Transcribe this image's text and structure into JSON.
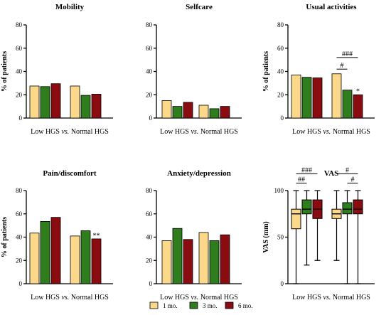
{
  "colors": {
    "1mo": "#fbd88a",
    "3mo": "#2f7d1c",
    "6mo": "#8b0c10",
    "stroke": "#000000"
  },
  "legend": [
    {
      "key": "1mo",
      "label": "1 mo."
    },
    {
      "key": "3mo",
      "label": "3 mo."
    },
    {
      "key": "6mo",
      "label": "6 mo."
    }
  ],
  "chart_data": [
    {
      "type": "bar",
      "title": "Mobility",
      "ylabel": "% of patients",
      "xlabel": {
        "left": "Low HGS ",
        "vs": "vs.",
        "right": " Normal HGS"
      },
      "ylim": [
        0,
        80
      ],
      "yticks": [
        0,
        20,
        40,
        60,
        80
      ],
      "categories": [
        "Low HGS",
        "Normal HGS"
      ],
      "series": [
        {
          "name": "1 mo.",
          "key": "1mo",
          "values": [
            27.5,
            27.5
          ]
        },
        {
          "name": "3 mo.",
          "key": "3mo",
          "values": [
            27,
            19.5
          ]
        },
        {
          "name": "6 mo.",
          "key": "6mo",
          "values": [
            29.5,
            20.5
          ]
        }
      ],
      "annotations": []
    },
    {
      "type": "bar",
      "title": "Selfcare",
      "ylabel": "",
      "xlabel": {
        "left": "Low HGS ",
        "vs": "vs.",
        "right": " Normal HGS"
      },
      "ylim": [
        0,
        80
      ],
      "yticks": [
        0,
        20,
        40,
        60,
        80
      ],
      "categories": [
        "Low HGS",
        "Normal HGS"
      ],
      "series": [
        {
          "name": "1 mo.",
          "key": "1mo",
          "values": [
            15,
            11
          ]
        },
        {
          "name": "3 mo.",
          "key": "3mo",
          "values": [
            10,
            8
          ]
        },
        {
          "name": "6 mo.",
          "key": "6mo",
          "values": [
            13.5,
            10
          ]
        }
      ],
      "annotations": []
    },
    {
      "type": "bar",
      "title": "Usual activities",
      "ylabel": "% of patients",
      "xlabel": {
        "left": "Low HGS ",
        "vs": "vs.",
        "right": " Normal HGS"
      },
      "ylim": [
        0,
        80
      ],
      "yticks": [
        0,
        20,
        40,
        60,
        80
      ],
      "categories": [
        "Low HGS",
        "Normal HGS"
      ],
      "series": [
        {
          "name": "1 mo.",
          "key": "1mo",
          "values": [
            37,
            38
          ]
        },
        {
          "name": "3 mo.",
          "key": "3mo",
          "values": [
            35,
            24
          ]
        },
        {
          "name": "6 mo.",
          "key": "6mo",
          "values": [
            34.5,
            20
          ]
        }
      ],
      "annotations": [
        {
          "text": "###",
          "group": 1,
          "from": 0,
          "to": 2,
          "y": 52
        },
        {
          "text": "#",
          "group": 1,
          "from": 0,
          "to": 1,
          "y": 42
        },
        {
          "text": "*",
          "group": 1,
          "bar": 2,
          "y": 21
        }
      ]
    },
    {
      "type": "bar",
      "title": "Pain/discomfort",
      "ylabel": "% of patients",
      "xlabel": {
        "left": "Low HGS ",
        "vs": "vs.",
        "right": " Normal HGS"
      },
      "ylim": [
        0,
        80
      ],
      "yticks": [
        0,
        20,
        40,
        60,
        80
      ],
      "categories": [
        "Low HGS",
        "Normal HGS"
      ],
      "series": [
        {
          "name": "1 mo.",
          "key": "1mo",
          "values": [
            43.5,
            41
          ]
        },
        {
          "name": "3 mo.",
          "key": "3mo",
          "values": [
            53.5,
            45.5
          ]
        },
        {
          "name": "6 mo.",
          "key": "6mo",
          "values": [
            57,
            38.5
          ]
        }
      ],
      "annotations": [
        {
          "text": "**",
          "group": 1,
          "bar": 2,
          "y": 39.5
        }
      ]
    },
    {
      "type": "bar",
      "title": "Anxiety/depression",
      "ylabel": "",
      "xlabel": {
        "left": "Low HGS ",
        "vs": "vs.",
        "right": " Normal HGS"
      },
      "ylim": [
        0,
        80
      ],
      "yticks": [
        0,
        20,
        40,
        60,
        80
      ],
      "categories": [
        "Low HGS",
        "Normal HGS"
      ],
      "series": [
        {
          "name": "1 mo.",
          "key": "1mo",
          "values": [
            37,
            44
          ]
        },
        {
          "name": "3 mo.",
          "key": "3mo",
          "values": [
            47.5,
            37
          ]
        },
        {
          "name": "6 mo.",
          "key": "6mo",
          "values": [
            38,
            42
          ]
        }
      ],
      "annotations": []
    },
    {
      "type": "box",
      "title": "VAS",
      "ylabel": "VAS (mm)",
      "xlabel": {
        "left": "Low HGS ",
        "vs": "vs.",
        "right": " Normal HGS"
      },
      "ylim": [
        0,
        100
      ],
      "yticks": [
        0,
        50,
        100
      ],
      "categories": [
        "Low HGS",
        "Normal HGS"
      ],
      "series": [
        {
          "name": "1 mo.",
          "key": "1mo",
          "boxes": [
            {
              "min": 0,
              "q1": 59,
              "median": 75,
              "q3": 80,
              "max": 100
            },
            {
              "min": 25,
              "q1": 70,
              "median": 75,
              "q3": 80,
              "max": 100
            }
          ]
        },
        {
          "name": "3 mo.",
          "key": "3mo",
          "boxes": [
            {
              "min": 20,
              "q1": 75,
              "median": 80,
              "q3": 90,
              "max": 100
            },
            {
              "min": 0,
              "q1": 75,
              "median": 80,
              "q3": 87,
              "max": 100
            }
          ]
        },
        {
          "name": "6 mo.",
          "key": "6mo",
          "boxes": [
            {
              "min": 25,
              "q1": 70,
              "median": 80,
              "q3": 90,
              "max": 100
            },
            {
              "min": 0,
              "q1": 75,
              "median": 80,
              "q3": 90,
              "max": 100
            }
          ]
        }
      ],
      "annotations": [
        {
          "text": "###",
          "group": 0,
          "from": 0,
          "to": 2,
          "y": 118
        },
        {
          "text": "##",
          "group": 0,
          "from": 0,
          "to": 1,
          "y": 108
        },
        {
          "text": "#",
          "group": 1,
          "from": 0,
          "to": 2,
          "y": 118
        },
        {
          "text": "#",
          "group": 1,
          "from": 1,
          "to": 2,
          "y": 108
        }
      ]
    }
  ]
}
